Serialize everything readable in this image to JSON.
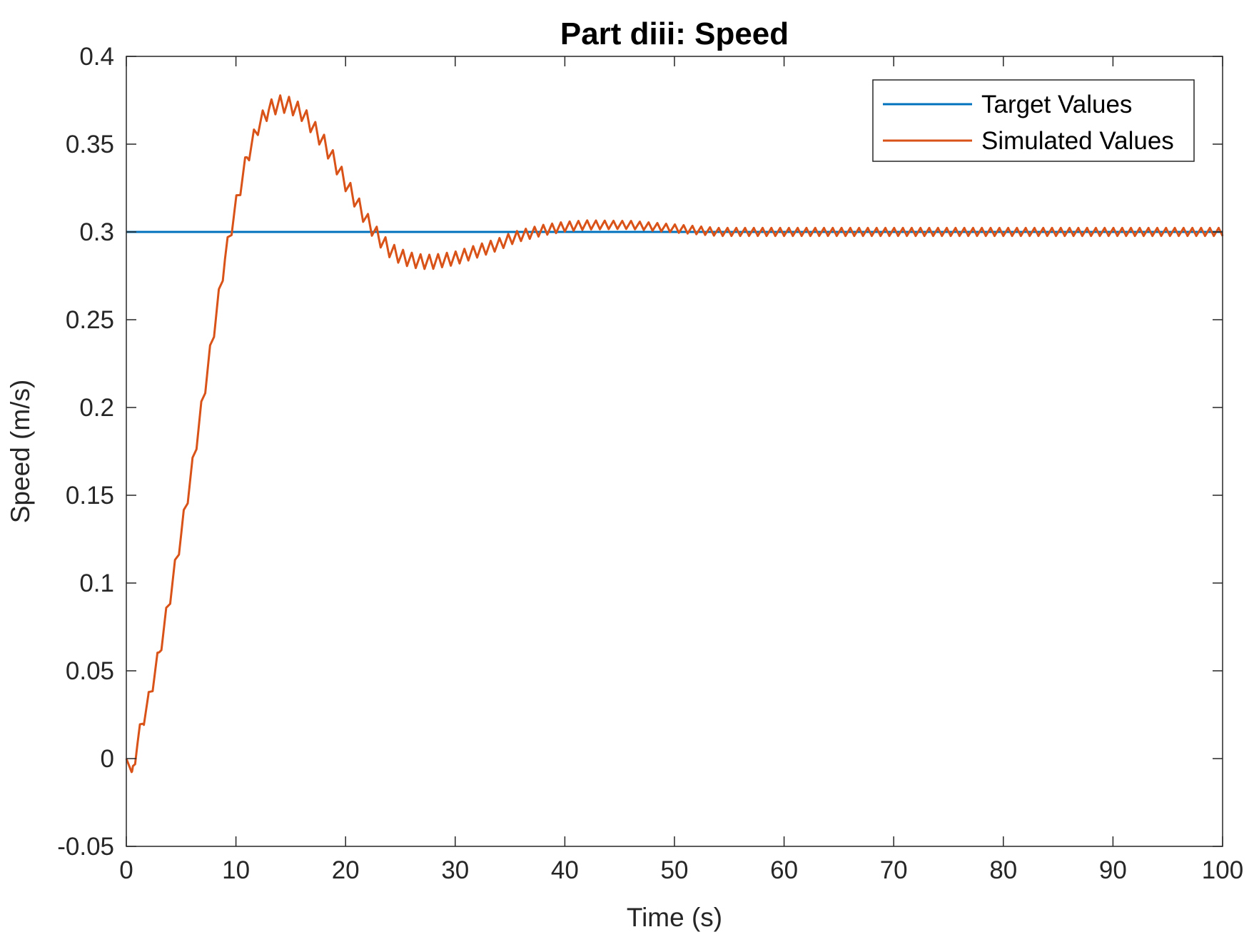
{
  "chart_data": {
    "type": "line",
    "title": "Part diii: Speed",
    "xlabel": "Time (s)",
    "ylabel": "Speed (m/s)",
    "xlim": [
      0,
      100
    ],
    "ylim": [
      -0.05,
      0.4
    ],
    "xticks": [
      0,
      10,
      20,
      30,
      40,
      50,
      60,
      70,
      80,
      90,
      100
    ],
    "xtick_labels": [
      "0",
      "10",
      "20",
      "30",
      "40",
      "50",
      "60",
      "70",
      "80",
      "90",
      "100"
    ],
    "yticks": [
      -0.05,
      0,
      0.05,
      0.1,
      0.15,
      0.2,
      0.25,
      0.3,
      0.35,
      0.4
    ],
    "ytick_labels": [
      "-0.05",
      "0",
      "0.05",
      "0.1",
      "0.15",
      "0.2",
      "0.25",
      "0.3",
      "0.35",
      "0.4"
    ],
    "grid": false,
    "legend_position": "top-right",
    "series": [
      {
        "name": "Target Values",
        "color": "#0072BD",
        "x": [
          0,
          100
        ],
        "y": [
          0.3,
          0.3
        ]
      },
      {
        "name": "Simulated Values",
        "color": "#D95319",
        "ripple_period_s": 0.8,
        "x": [
          0,
          0.5,
          1,
          1.5,
          2,
          3,
          4,
          5,
          6,
          7,
          8,
          9,
          10,
          11,
          12,
          13,
          14,
          15,
          16,
          17,
          18,
          19,
          20,
          21,
          22,
          23,
          24,
          25,
          26,
          27,
          28,
          29,
          30,
          31,
          32,
          33,
          34,
          35,
          36,
          38,
          40,
          42,
          44,
          45,
          46,
          48,
          50,
          52,
          54,
          56,
          58,
          60,
          63,
          66,
          70,
          75,
          80,
          85,
          90,
          95,
          100
        ],
        "y": [
          0,
          -0.008,
          0.008,
          0.022,
          0.032,
          0.06,
          0.093,
          0.128,
          0.165,
          0.205,
          0.245,
          0.285,
          0.315,
          0.342,
          0.36,
          0.37,
          0.373,
          0.372,
          0.368,
          0.36,
          0.351,
          0.34,
          0.328,
          0.317,
          0.306,
          0.297,
          0.29,
          0.286,
          0.284,
          0.283,
          0.283,
          0.284,
          0.285,
          0.287,
          0.289,
          0.291,
          0.293,
          0.296,
          0.298,
          0.301,
          0.303,
          0.304,
          0.304,
          0.304,
          0.304,
          0.303,
          0.302,
          0.301,
          0.3,
          0.3,
          0.3,
          0.3,
          0.3,
          0.3,
          0.3,
          0.3,
          0.3,
          0.3,
          0.3,
          0.3,
          0.3
        ]
      }
    ]
  }
}
